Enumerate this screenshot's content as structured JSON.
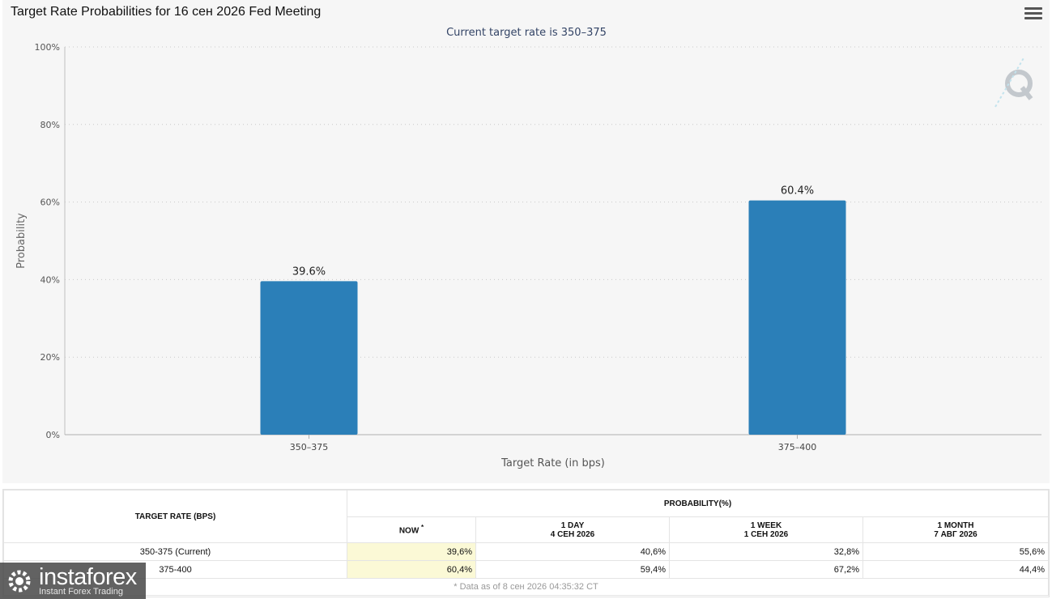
{
  "title": "Target Rate Probabilities for 16 сен 2026 Fed Meeting",
  "menu_icon": "hamburger-menu-icon",
  "chart_data": {
    "type": "bar",
    "title": "Target Rate Probabilities for 16 сен 2026 Fed Meeting",
    "subtitle": "Current target rate is 350–375",
    "categories": [
      "350–375",
      "375–400"
    ],
    "values": [
      39.6,
      60.4
    ],
    "data_labels": [
      "39.6%",
      "60.4%"
    ],
    "xlabel": "Target Rate (in bps)",
    "ylabel": "Probability",
    "ylim": [
      0,
      100
    ],
    "yticks": [
      "0%",
      "20%",
      "40%",
      "60%",
      "80%",
      "100%"
    ],
    "grid": true,
    "bar_color": "#2b7fb8"
  },
  "table": {
    "col_rate": "TARGET RATE (BPS)",
    "col_prob": "PROBABILITY(%)",
    "now_label": "NOW",
    "now_mark": "*",
    "periods": [
      {
        "label": "1 DAY",
        "date": "4 СЕН 2026"
      },
      {
        "label": "1 WEEK",
        "date": "1 СЕН 2026"
      },
      {
        "label": "1 MONTH",
        "date": "7 АВГ 2026"
      }
    ],
    "rows": [
      {
        "rate": "350-375 (Current)",
        "now": "39,6%",
        "day": "40,6%",
        "week": "32,8%",
        "month": "55,6%"
      },
      {
        "rate": "375-400",
        "now": "60,4%",
        "day": "59,4%",
        "week": "67,2%",
        "month": "44,4%"
      }
    ],
    "footnote": "* Data as of 8 сен 2026 04:35:32 CT"
  },
  "watermark": {
    "brand": "instaforex",
    "tagline": "Instant Forex Trading"
  }
}
